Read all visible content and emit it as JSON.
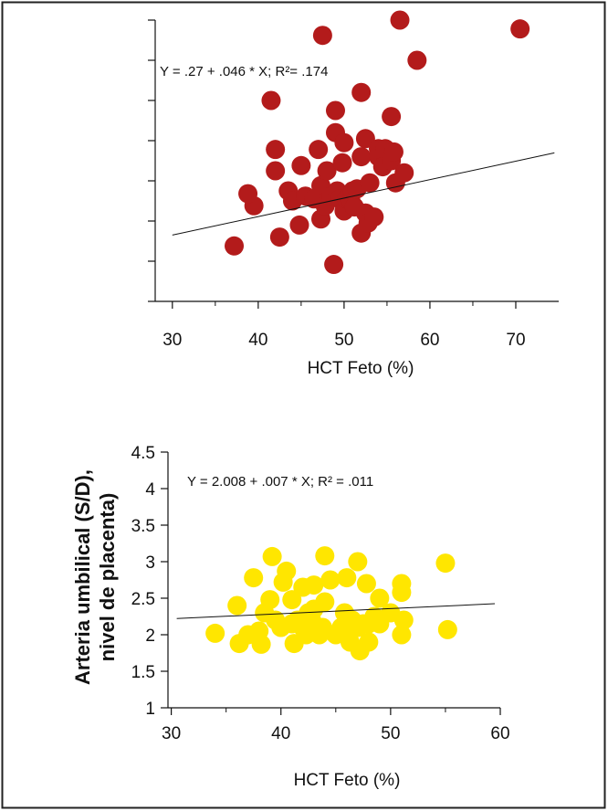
{
  "chart_data": [
    {
      "type": "scatter",
      "equation": "Y = .27 + .046 * X; R²= .174",
      "xlabel": "HCT Feto (%)",
      "ylabel": "",
      "xlim": [
        28,
        75
      ],
      "ylim": [
        0,
        7
      ],
      "xticks": [
        30,
        40,
        50,
        60,
        70
      ],
      "show_y_tick_labels": false,
      "grid": false,
      "point_color": "#b31b1b",
      "regression": {
        "intercept": 0.27,
        "slope": 0.046
      },
      "points": [
        [
          37.2,
          1.38
        ],
        [
          39.5,
          2.38
        ],
        [
          38.8,
          2.68
        ],
        [
          41.5,
          5.0
        ],
        [
          42.0,
          3.78
        ],
        [
          42.0,
          3.25
        ],
        [
          42.5,
          1.6
        ],
        [
          43.5,
          2.75
        ],
        [
          44.0,
          2.5
        ],
        [
          44.8,
          1.9
        ],
        [
          45.0,
          3.38
        ],
        [
          45.5,
          2.62
        ],
        [
          46.5,
          2.55
        ],
        [
          47.0,
          3.78
        ],
        [
          47.3,
          2.05
        ],
        [
          47.3,
          2.88
        ],
        [
          47.5,
          6.62
        ],
        [
          47.8,
          2.38
        ],
        [
          48.0,
          3.25
        ],
        [
          48.5,
          2.62
        ],
        [
          48.8,
          0.92
        ],
        [
          49.0,
          4.2
        ],
        [
          49.0,
          4.75
        ],
        [
          49.2,
          2.75
        ],
        [
          49.5,
          2.55
        ],
        [
          49.8,
          3.45
        ],
        [
          50.0,
          3.95
        ],
        [
          50.0,
          2.25
        ],
        [
          50.3,
          2.55
        ],
        [
          50.8,
          2.5
        ],
        [
          51.0,
          2.75
        ],
        [
          51.2,
          2.35
        ],
        [
          51.5,
          2.8
        ],
        [
          52.0,
          3.6
        ],
        [
          52.0,
          5.2
        ],
        [
          52.0,
          1.7
        ],
        [
          52.5,
          4.05
        ],
        [
          52.5,
          2.2
        ],
        [
          52.8,
          1.95
        ],
        [
          53.0,
          2.95
        ],
        [
          53.5,
          2.1
        ],
        [
          54.0,
          3.6
        ],
        [
          54.0,
          3.8
        ],
        [
          54.5,
          3.35
        ],
        [
          54.8,
          3.8
        ],
        [
          55.5,
          3.5
        ],
        [
          55.5,
          4.6
        ],
        [
          55.8,
          3.72
        ],
        [
          56.0,
          2.95
        ],
        [
          56.5,
          7.0
        ],
        [
          57.0,
          3.2
        ],
        [
          58.5,
          6.0
        ],
        [
          70.5,
          6.78
        ]
      ]
    },
    {
      "type": "scatter",
      "equation": "Y =  2.008  +  .007  * X;  R²  =  .011",
      "xlabel": "HCT Feto (%)",
      "ylabel": "Arteria umbilical (S/D), nivel de placenta)",
      "xlim": [
        29.7,
        60
      ],
      "ylim": [
        1,
        4.5
      ],
      "xticks": [
        30,
        40,
        50,
        60
      ],
      "yticks": [
        1,
        1.5,
        2,
        2.5,
        3,
        3.5,
        4,
        4.5
      ],
      "ytick_labels": [
        "1",
        "1.5",
        "2",
        "2.5",
        "3",
        "3.5",
        "4",
        "4.5"
      ],
      "grid": false,
      "point_color": "#ffe600",
      "regression": {
        "intercept": 2.008,
        "slope": 0.007
      },
      "points": [
        [
          34,
          2.02
        ],
        [
          36,
          2.4
        ],
        [
          36.2,
          1.88
        ],
        [
          37,
          2.0
        ],
        [
          37.5,
          2.78
        ],
        [
          38,
          2.05
        ],
        [
          38.2,
          1.87
        ],
        [
          38.5,
          2.3
        ],
        [
          39,
          2.48
        ],
        [
          39.2,
          3.07
        ],
        [
          39.5,
          2.2
        ],
        [
          40,
          2.1
        ],
        [
          40.2,
          2.72
        ],
        [
          40.5,
          2.87
        ],
        [
          41,
          2.15
        ],
        [
          41,
          2.48
        ],
        [
          41.2,
          1.88
        ],
        [
          41.5,
          2.2
        ],
        [
          42,
          2.65
        ],
        [
          42,
          2.1
        ],
        [
          42.3,
          2.0
        ],
        [
          42.5,
          2.3
        ],
        [
          42.8,
          2.2
        ],
        [
          43,
          2.68
        ],
        [
          43,
          2.35
        ],
        [
          43.5,
          2.0
        ],
        [
          43.8,
          2.1
        ],
        [
          44,
          3.08
        ],
        [
          44,
          2.45
        ],
        [
          44.5,
          2.75
        ],
        [
          45,
          2.0
        ],
        [
          45.5,
          2.1
        ],
        [
          45.8,
          2.3
        ],
        [
          46,
          2.78
        ],
        [
          46,
          2.02
        ],
        [
          46.3,
          1.9
        ],
        [
          46.5,
          2.2
        ],
        [
          47,
          2.1
        ],
        [
          47,
          3.0
        ],
        [
          47.2,
          1.78
        ],
        [
          47.5,
          2.15
        ],
        [
          47.8,
          2.7
        ],
        [
          48,
          2.15
        ],
        [
          48,
          1.9
        ],
        [
          48.5,
          2.25
        ],
        [
          49,
          2.5
        ],
        [
          49,
          2.15
        ],
        [
          50,
          2.3
        ],
        [
          51,
          2.0
        ],
        [
          51,
          2.7
        ],
        [
          51,
          2.58
        ],
        [
          51.2,
          2.2
        ],
        [
          55,
          2.98
        ],
        [
          55.2,
          2.07
        ]
      ]
    }
  ]
}
